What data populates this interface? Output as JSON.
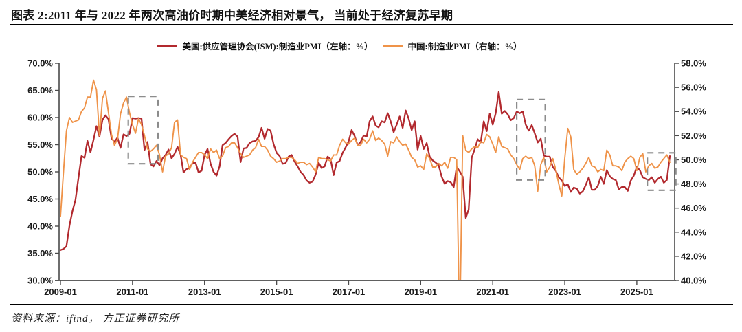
{
  "header": {
    "title": "图表 2:2011 年与 2022 年两次高油价时期中美经济相对景气， 当前处于经济复苏早期"
  },
  "footer": {
    "source": "资料来源：ifind， 方正证券研究所"
  },
  "legend": [
    {
      "label": "美国:供应管理协会(ISM):制造业PMI（左轴：%）",
      "color": "#b2292e"
    },
    {
      "label": "中国:制造业PMI（右轴：%）",
      "color": "#ef9349"
    }
  ],
  "chart_data": {
    "type": "line",
    "title": "",
    "grid": false,
    "legend_position": "top",
    "x_axis": {
      "start": "2009-01",
      "months_total": 204,
      "tick_labels": [
        "2009-01",
        "2011-01",
        "2013-01",
        "2015-01",
        "2017-01",
        "2019-01",
        "2021-01",
        "2023-01",
        "2025-01"
      ],
      "tick_month_indices": [
        0,
        24,
        48,
        72,
        96,
        120,
        144,
        168,
        192
      ]
    },
    "left_axis": {
      "min": 30,
      "max": 70,
      "tick_values": [
        30,
        35,
        40,
        45,
        50,
        55,
        60,
        65,
        70
      ],
      "tick_labels": [
        "30.0%",
        "35.0%",
        "40.0%",
        "45.0%",
        "50.0%",
        "55.0%",
        "60.0%",
        "65.0%",
        "70.0%"
      ]
    },
    "right_axis": {
      "min": 40,
      "max": 58,
      "tick_values": [
        40,
        42,
        44,
        46,
        48,
        50,
        52,
        54,
        56,
        58
      ],
      "tick_labels": [
        "40.0%",
        "42.0%",
        "44.0%",
        "46.0%",
        "48.0%",
        "50.0%",
        "52.0%",
        "54.0%",
        "56.0%",
        "58.0%"
      ]
    },
    "series": [
      {
        "name": "美国:供应管理协会(ISM):制造业PMI",
        "axis": "left",
        "color": "#b2292e",
        "values": [
          35.6,
          35.8,
          36.3,
          40.1,
          42.8,
          44.8,
          48.9,
          52.9,
          52.6,
          55.7,
          53.6,
          55.9,
          58.4,
          56.5,
          59.6,
          60.4,
          59.7,
          56.2,
          55.5,
          56.3,
          54.4,
          56.9,
          56.6,
          57.0,
          59.9,
          59.8,
          59.9,
          59.8,
          54.0,
          55.5,
          51.4,
          51.0,
          52.0,
          51.2,
          52.5,
          53.1,
          54.1,
          52.5,
          53.3,
          54.6,
          53.2,
          49.9,
          50.5,
          50.7,
          51.6,
          51.7,
          49.9,
          50.2,
          53.1,
          54.2,
          51.5,
          50.0,
          49.3,
          51.0,
          54.9,
          55.3,
          56.0,
          56.6,
          57.0,
          56.5,
          51.8,
          54.3,
          54.4,
          55.3,
          55.6,
          55.7,
          56.4,
          58.1,
          56.1,
          57.9,
          57.6,
          55.1,
          53.5,
          52.9,
          51.5,
          51.6,
          52.8,
          53.1,
          51.9,
          51.0,
          50.0,
          49.4,
          48.4,
          48.0,
          48.2,
          49.5,
          51.7,
          50.7,
          51.0,
          52.8,
          52.3,
          49.4,
          51.7,
          52.0,
          53.5,
          54.5,
          55.6,
          57.7,
          56.6,
          54.9,
          55.5,
          56.7,
          56.5,
          59.3,
          60.2,
          58.5,
          58.2,
          59.3,
          59.1,
          60.8,
          59.3,
          57.3,
          58.7,
          60.2,
          58.1,
          61.3,
          59.8,
          57.7,
          59.3,
          54.1,
          56.6,
          54.2,
          55.3,
          52.8,
          52.1,
          51.7,
          51.2,
          49.1,
          47.8,
          48.3,
          48.1,
          47.2,
          50.9,
          50.1,
          49.1,
          41.5,
          43.1,
          52.6,
          54.2,
          56.0,
          55.4,
          59.3,
          57.5,
          60.7,
          58.7,
          60.8,
          64.7,
          60.7,
          61.2,
          60.6,
          59.5,
          59.9,
          61.1,
          60.8,
          61.1,
          58.7,
          57.6,
          58.6,
          57.1,
          55.4,
          56.1,
          53.0,
          52.8,
          52.8,
          50.9,
          50.2,
          49.0,
          48.4,
          47.4,
          47.7,
          46.3,
          47.1,
          46.9,
          46.0,
          46.4,
          47.6,
          49.0,
          46.7,
          46.7,
          47.4,
          49.1,
          47.8,
          50.3,
          49.2,
          48.7,
          48.5,
          46.8,
          47.2,
          47.2,
          46.5,
          48.4,
          49.3,
          50.9,
          50.3,
          49.0,
          48.7,
          48.5,
          49.0,
          48.0,
          48.7,
          49.1,
          48.0,
          48.5,
          52.9
        ]
      },
      {
        "name": "中国:制造业PMI",
        "axis": "right",
        "color": "#ef9349",
        "values": [
          45.3,
          49.0,
          52.4,
          53.5,
          53.1,
          53.2,
          53.3,
          54.0,
          54.3,
          55.2,
          55.2,
          56.6,
          55.8,
          52.0,
          55.1,
          55.7,
          53.9,
          52.1,
          51.2,
          51.7,
          53.8,
          54.7,
          55.2,
          53.9,
          52.9,
          52.2,
          53.4,
          52.9,
          52.0,
          50.9,
          50.7,
          50.9,
          51.2,
          50.4,
          49.0,
          50.3,
          50.5,
          51.0,
          53.1,
          53.3,
          50.4,
          50.2,
          50.1,
          49.2,
          49.8,
          50.2,
          50.6,
          50.6,
          50.4,
          50.1,
          50.9,
          50.6,
          50.8,
          50.1,
          50.3,
          51.0,
          51.1,
          51.4,
          51.4,
          51.0,
          50.5,
          50.2,
          50.3,
          50.4,
          50.8,
          51.0,
          51.7,
          51.1,
          51.1,
          50.8,
          50.3,
          50.1,
          49.8,
          49.9,
          50.1,
          50.1,
          50.2,
          50.2,
          50.0,
          49.7,
          49.8,
          49.8,
          49.6,
          49.7,
          49.4,
          49.0,
          50.2,
          50.1,
          50.1,
          50.0,
          49.9,
          50.4,
          50.4,
          51.2,
          51.7,
          51.4,
          51.3,
          51.6,
          51.8,
          51.2,
          51.2,
          51.7,
          51.4,
          51.7,
          52.4,
          51.6,
          51.8,
          51.6,
          51.3,
          50.3,
          51.5,
          51.4,
          51.9,
          51.5,
          51.2,
          51.3,
          50.8,
          50.2,
          50.0,
          49.4,
          49.5,
          49.2,
          50.5,
          50.1,
          49.4,
          49.4,
          49.7,
          49.5,
          49.8,
          49.3,
          50.2,
          50.2,
          50.0,
          35.7,
          52.0,
          50.8,
          50.6,
          50.9,
          51.1,
          51.0,
          51.5,
          51.4,
          52.1,
          51.9,
          51.3,
          50.6,
          51.9,
          51.1,
          51.0,
          50.9,
          50.4,
          50.1,
          49.6,
          49.2,
          50.1,
          50.3,
          50.1,
          50.2,
          49.5,
          47.4,
          49.6,
          50.2,
          49.0,
          49.4,
          50.1,
          49.2,
          48.0,
          47.0,
          50.1,
          52.6,
          51.9,
          49.2,
          48.8,
          49.0,
          49.3,
          49.7,
          50.2,
          49.5,
          49.4,
          49.0,
          49.2,
          49.1,
          50.8,
          50.4,
          49.5,
          49.5,
          49.4,
          49.1,
          49.8,
          50.1,
          50.3,
          50.1,
          49.1,
          50.2,
          50.5,
          49.0,
          49.5,
          49.7,
          49.3,
          49.4,
          49.8,
          50.1,
          50.4,
          49.8
        ]
      }
    ],
    "annotations": [
      {
        "id": "highlight-box-2011",
        "from_month_index": 22.6,
        "to_month_index": 32.5,
        "top_value_left_axis": 63.9,
        "bottom_value_left_axis": 51.5
      },
      {
        "id": "highlight-box-2022",
        "from_month_index": 152.0,
        "to_month_index": 161.5,
        "top_value_left_axis": 63.3,
        "bottom_value_left_axis": 48.5
      },
      {
        "id": "highlight-box-current",
        "from_month_index": 195.5,
        "to_month_index": 205.0,
        "top_value_left_axis": 53.5,
        "bottom_value_left_axis": 46.6
      }
    ]
  }
}
